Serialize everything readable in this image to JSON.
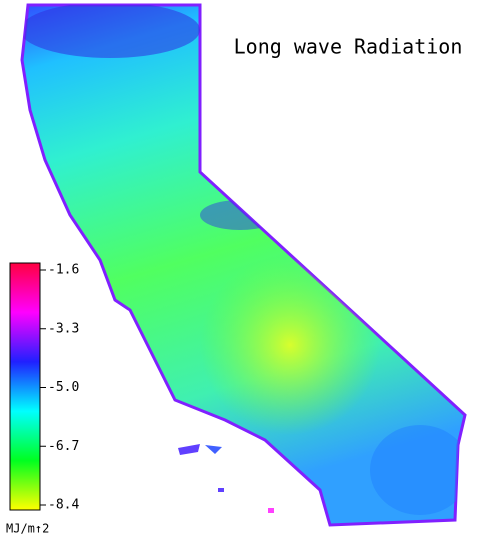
{
  "title": "Long wave Radiation",
  "colorbar": {
    "ticks": [
      -1.6,
      -3.3,
      {
        "value": -5,
        "label": "-5.0"
      },
      -6.7,
      -8.4
    ],
    "colors": [
      "#ff0040",
      "#ff00ff",
      "#2020ff",
      "#00ffff",
      "#00ff20",
      "#ffff00"
    ],
    "unit": "MJ/m↑2"
  }
}
